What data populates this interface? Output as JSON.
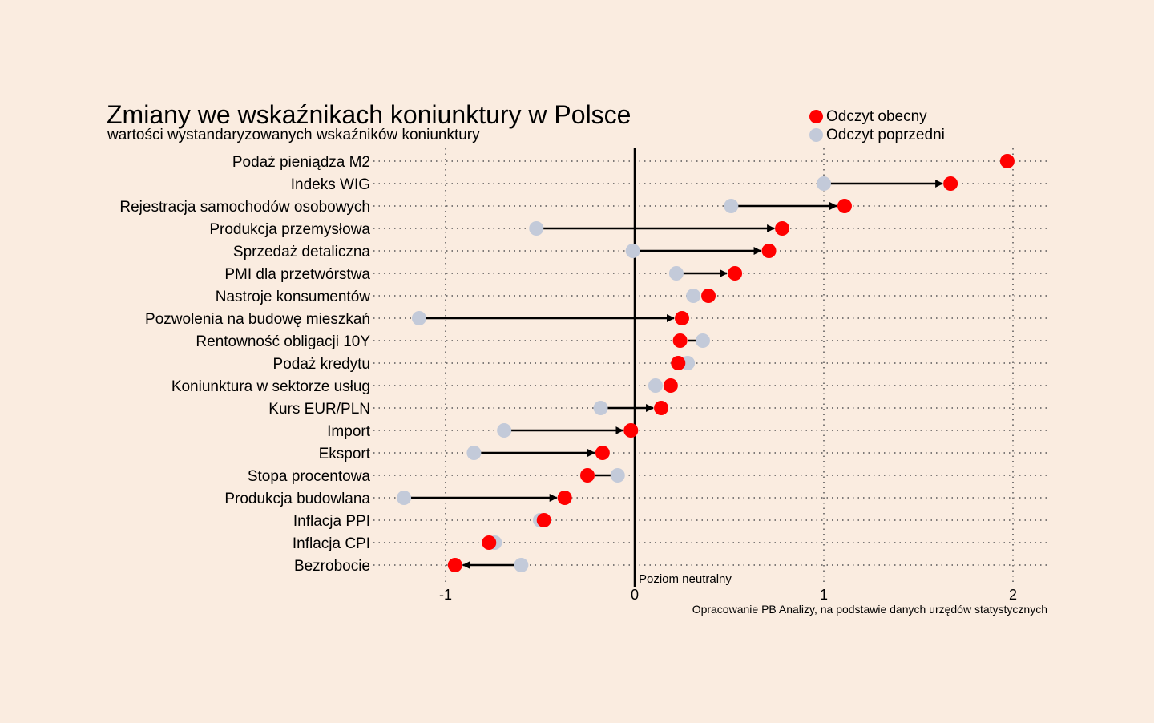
{
  "chart_data": {
    "type": "dumbbell",
    "title": "Zmiany we wskaźnikach koniunktury w Polsce",
    "subtitle": "wartości wystandaryzowanych wskaźników koniunktury",
    "source": "Opracowanie PB Analizy, na podstawie danych urzędów statystycznych",
    "neutral_label": "Poziom neutralny",
    "xlim": [
      -1.4,
      2.2
    ],
    "xticks": [
      -1,
      0,
      1,
      2
    ],
    "xtick_labels": [
      "-1",
      "0",
      "1",
      "2"
    ],
    "grid": "vertical dotted at ticks, horizontal dotted per row",
    "legend_position": "top-right",
    "colors": {
      "current": "#ff0000",
      "previous": "#c3cad9",
      "background": "#faece0"
    },
    "series": [
      {
        "name": "Odczyt obecny",
        "key": "current"
      },
      {
        "name": "Odczyt poprzedni",
        "key": "previous"
      }
    ],
    "categories": [
      "Podaż pieniądza M2",
      "Indeks WIG",
      "Rejestracja samochodów osobowych",
      "Produkcja przemysłowa",
      "Sprzedaż detaliczna",
      "PMI dla przetwórstwa",
      "Nastroje konsumentów",
      "Pozwolenia na budowę mieszkań",
      "Rentowność obligacji 10Y",
      "Podaż kredytu",
      "Koniunktura w sektorze usług",
      "Kurs EUR/PLN",
      "Import",
      "Eksport",
      "Stopa procentowa",
      "Produkcja budowlana",
      "Inflacja PPI",
      "Inflacja CPI",
      "Bezrobocie"
    ],
    "current": [
      1.97,
      1.67,
      1.11,
      0.78,
      0.71,
      0.53,
      0.39,
      0.25,
      0.24,
      0.23,
      0.19,
      0.14,
      -0.02,
      -0.17,
      -0.25,
      -0.37,
      -0.48,
      -0.77,
      -0.95
    ],
    "previous": [
      1.97,
      1.0,
      0.51,
      -0.52,
      -0.01,
      0.22,
      0.31,
      -1.14,
      0.36,
      0.28,
      0.11,
      -0.18,
      -0.69,
      -0.85,
      -0.09,
      -1.22,
      -0.5,
      -0.74,
      -0.6
    ]
  }
}
